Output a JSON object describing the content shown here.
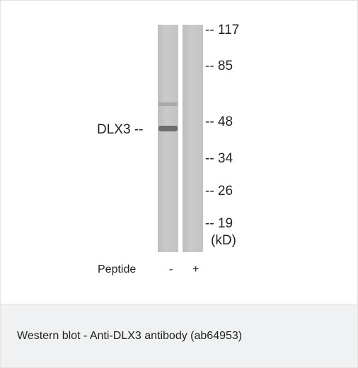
{
  "blot": {
    "markers": [
      "-- 117",
      "-- 85",
      "-- 48",
      "-- 34",
      "-- 26",
      "-- 19",
      "(kD)"
    ],
    "band_label": "DLX3 --",
    "lane_row_label": "Peptide",
    "lanes": [
      "-",
      "+"
    ]
  },
  "caption": "Western blot - Anti-DLX3 antibody (ab64953)"
}
